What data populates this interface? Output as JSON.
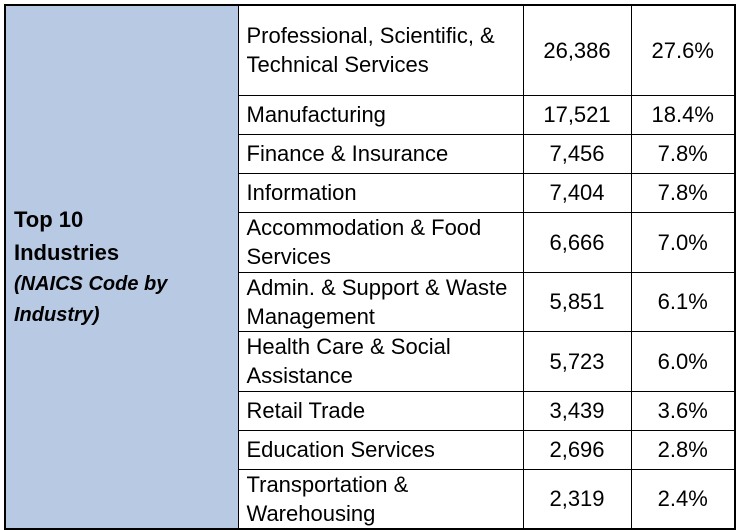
{
  "header": {
    "title_line1": "Top 10",
    "title_line2": "Industries",
    "subtitle_line1": "(NAICS Code by",
    "subtitle_line2": "Industry)"
  },
  "rows": [
    {
      "industry": "Professional, Scientific, & Technical Services",
      "count": "26,386",
      "percent": "27.6%"
    },
    {
      "industry": "Manufacturing",
      "count": "17,521",
      "percent": "18.4%"
    },
    {
      "industry": "Finance & Insurance",
      "count": "7,456",
      "percent": "7.8%"
    },
    {
      "industry": "Information",
      "count": "7,404",
      "percent": "7.8%"
    },
    {
      "industry": "Accommodation & Food Services",
      "count": "6,666",
      "percent": "7.0%"
    },
    {
      "industry": "Admin. & Support & Waste Management",
      "count": "5,851",
      "percent": "6.1%"
    },
    {
      "industry": "Health Care & Social Assistance",
      "count": "5,723",
      "percent": "6.0%"
    },
    {
      "industry": "Retail Trade",
      "count": "3,439",
      "percent": "3.6%"
    },
    {
      "industry": "Education Services",
      "count": "2,696",
      "percent": "2.8%"
    },
    {
      "industry": "Transportation & Warehousing",
      "count": "2,319",
      "percent": "2.4%"
    }
  ],
  "colors": {
    "header_fill": "#b8c9e3",
    "border": "#000000"
  }
}
